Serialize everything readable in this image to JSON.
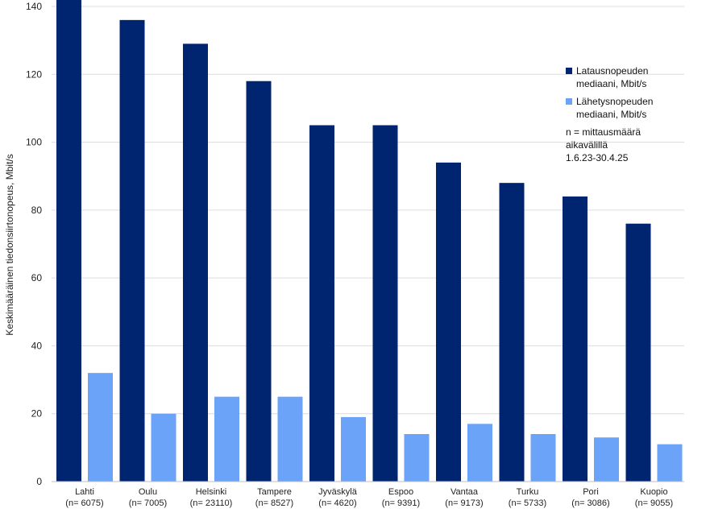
{
  "chart_data": {
    "type": "bar",
    "ylabel": "Keskimääräinen tiedonsiirtonopeus, Mbit/s",
    "ylim": [
      0,
      140
    ],
    "yticks": [
      0,
      20,
      40,
      60,
      80,
      100,
      120,
      140
    ],
    "grid": true,
    "legend_placement": "right",
    "categories": [
      [
        "Lahti",
        "(n= 6075)"
      ],
      [
        "Oulu",
        "(n= 7005)"
      ],
      [
        "Helsinki",
        "(n= 23110)"
      ],
      [
        "Tampere",
        "(n= 8527)"
      ],
      [
        "Jyväskylä",
        "(n= 4620)"
      ],
      [
        "Espoo",
        "(n= 9391)"
      ],
      [
        "Vantaa",
        "(n= 9173)"
      ],
      [
        "Turku",
        "(n= 5733)"
      ],
      [
        "Pori",
        "(n= 3086)"
      ],
      [
        "Kuopio",
        "(n= 9055)"
      ]
    ],
    "series": [
      {
        "name": "Latausnopeuden\nmediaani, Mbit/s",
        "color": "#002570",
        "values": [
          142,
          136,
          129,
          118,
          105,
          105,
          94,
          88,
          84,
          76
        ]
      },
      {
        "name": "Lähetysnopeuden\nmediaani, Mbit/s",
        "color": "#6aa3f8",
        "values": [
          32,
          20,
          25,
          25,
          19,
          14,
          17,
          14,
          13,
          11
        ]
      }
    ],
    "annotation": "n = mittausmäärä\naikavälillä\n1.6.23-30.4.25"
  }
}
